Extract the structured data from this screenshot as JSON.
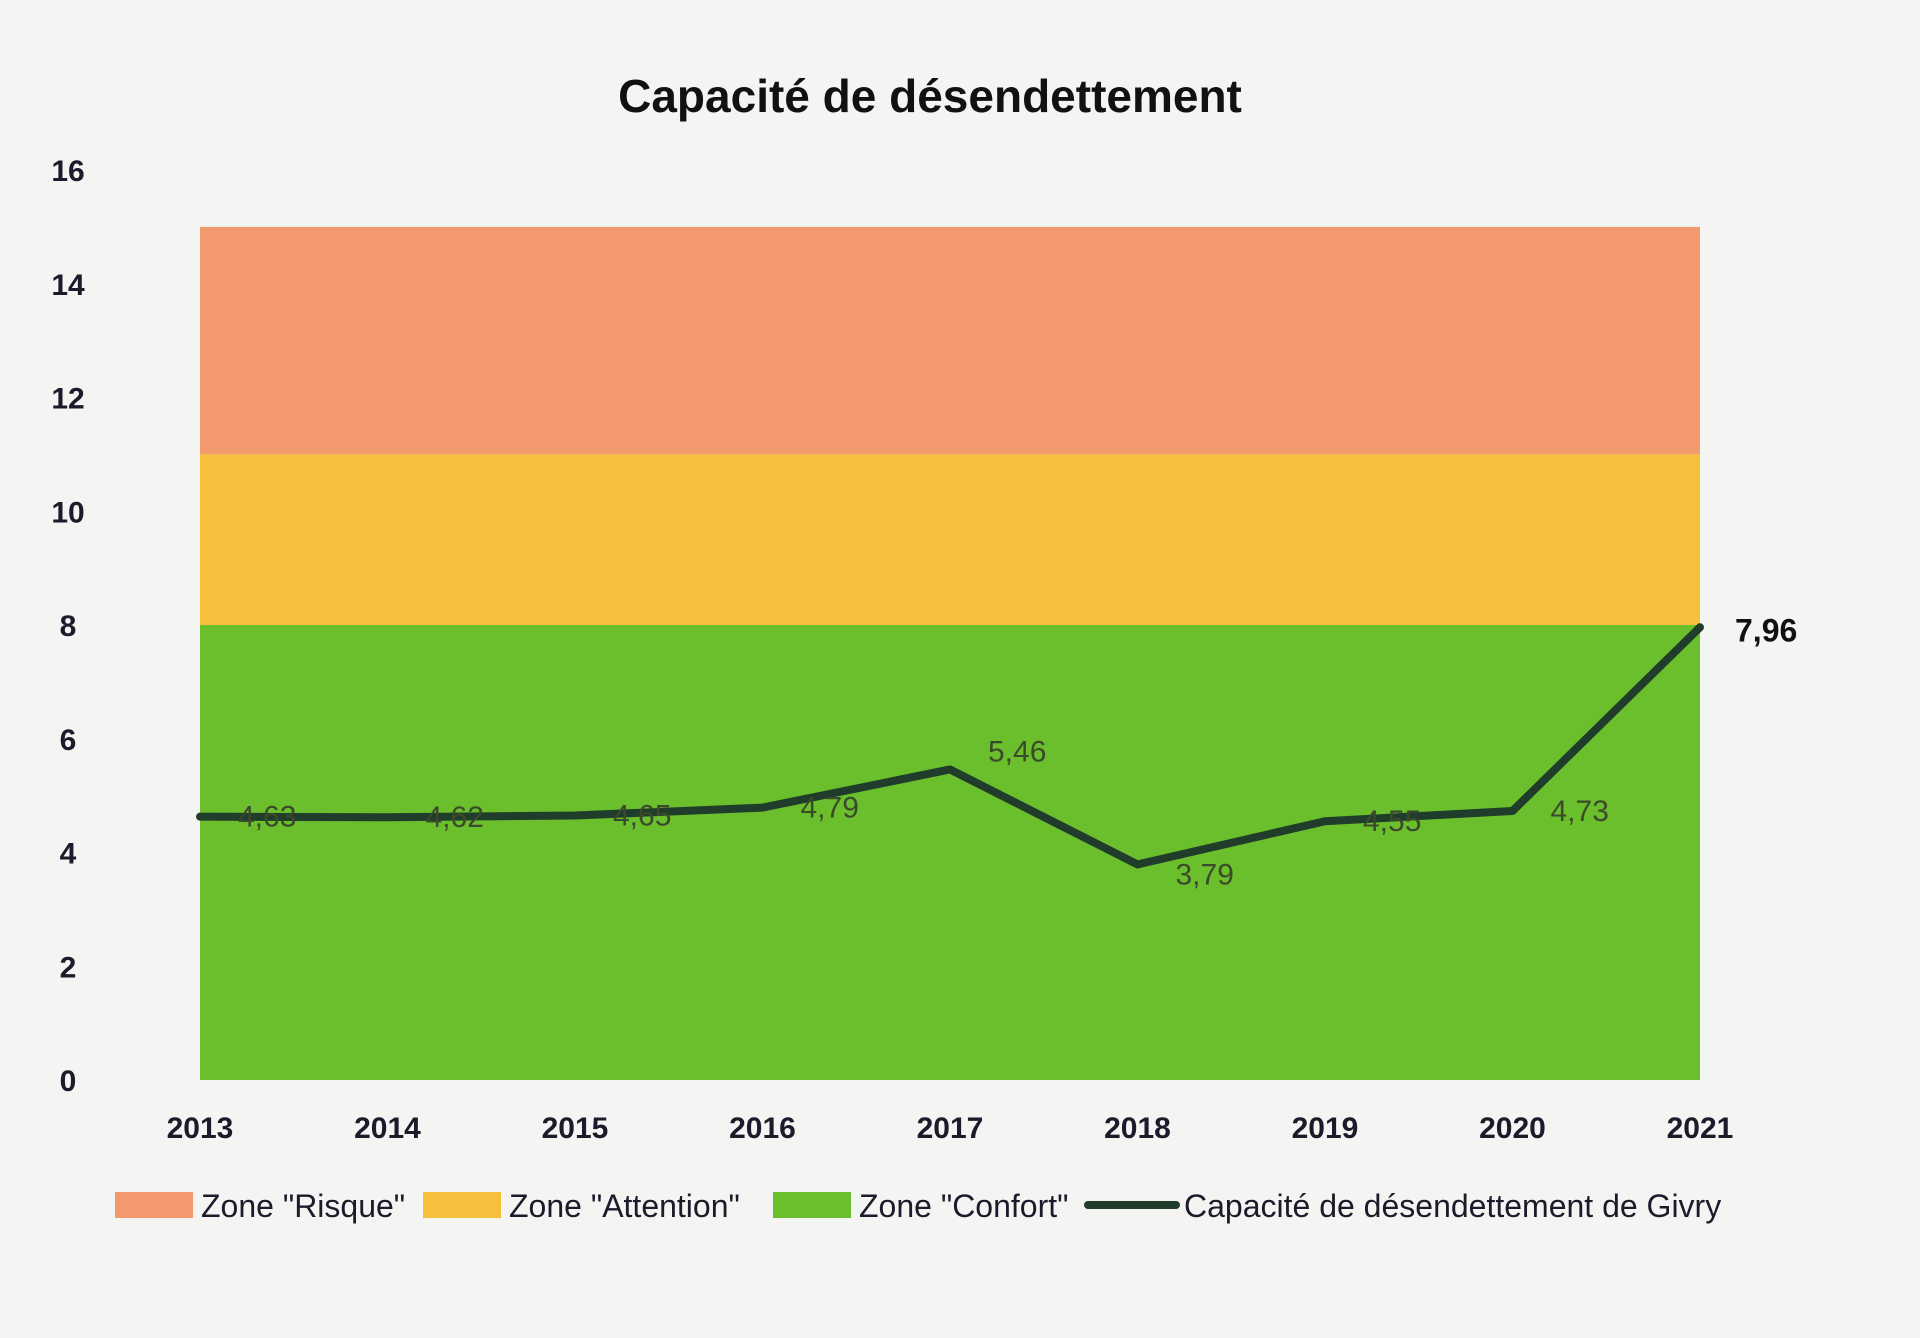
{
  "chart_data": {
    "type": "line",
    "title": "Capacité de désendettement",
    "categories": [
      "2013",
      "2014",
      "2015",
      "2016",
      "2017",
      "2018",
      "2019",
      "2020",
      "2021"
    ],
    "series": [
      {
        "name": "Capacité de désendettement de Givry",
        "values": [
          4.63,
          4.62,
          4.65,
          4.79,
          5.46,
          3.79,
          4.55,
          4.73,
          7.96
        ],
        "labels": [
          "4,63",
          "4,62",
          "4,65",
          "4,79",
          "5,46",
          "3,79",
          "4,55",
          "4,73",
          "7,96"
        ],
        "color": "#1f3d2a"
      }
    ],
    "zones": [
      {
        "name": "Zone \"Confort\"",
        "from": 0,
        "to": 8,
        "color": "#6cbf2c"
      },
      {
        "name": "Zone \"Attention\"",
        "from": 8,
        "to": 11,
        "color": "#f6bf3c"
      },
      {
        "name": "Zone \"Risque\"",
        "from": 11,
        "to": 15,
        "color": "#f29a6e"
      }
    ],
    "legend": [
      {
        "name": "Zone \"Risque\"",
        "kind": "box",
        "color": "#f29a6e"
      },
      {
        "name": "Zone \"Attention\"",
        "kind": "box",
        "color": "#f6bf3c"
      },
      {
        "name": "Zone \"Confort\"",
        "kind": "box",
        "color": "#6cbf2c"
      },
      {
        "name": "Capacité de désendettement de Givry",
        "kind": "line",
        "color": "#1f3d2a"
      }
    ],
    "y_ticks": [
      "0",
      "2",
      "4",
      "6",
      "8",
      "10",
      "12",
      "14",
      "16"
    ],
    "ylim": [
      0,
      16
    ],
    "legend_position": "bottom",
    "grid": false
  }
}
